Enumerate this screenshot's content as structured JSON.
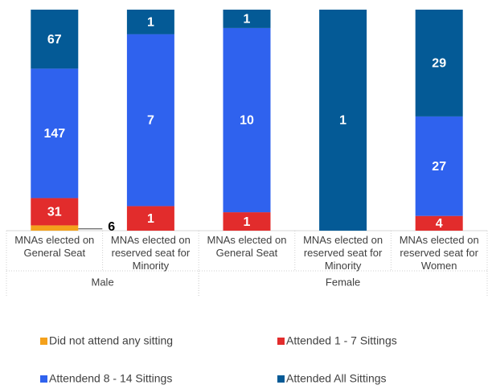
{
  "chart_data": {
    "type": "stacked_bar_percent",
    "categories": [
      "MNAs elected on General Seat",
      "MNAs elected on reserved seat for Minority",
      "MNAs elected on General Seat",
      "MNAs elected on reserved seat for Minority",
      "MNAs elected on reserved seat for Women"
    ],
    "groups": [
      {
        "name": "Male",
        "count": 2
      },
      {
        "name": "Female",
        "count": 3
      }
    ],
    "series": [
      {
        "name": "Did not attend any sitting",
        "color": "#f4a11c",
        "values": [
          6,
          null,
          null,
          null,
          null
        ]
      },
      {
        "name": "Attended 1 - 7 Sittings",
        "color": "#e22c2c",
        "values": [
          31,
          1,
          1,
          null,
          4
        ]
      },
      {
        "name": "Attendend 8 - 14 Sittings",
        "color": "#2f62ee",
        "values": [
          147,
          7,
          10,
          null,
          27
        ]
      },
      {
        "name": "Attended All Sittings",
        "color": "#045a96",
        "values": [
          67,
          1,
          1,
          1,
          29
        ]
      }
    ],
    "legend": "bottom"
  }
}
